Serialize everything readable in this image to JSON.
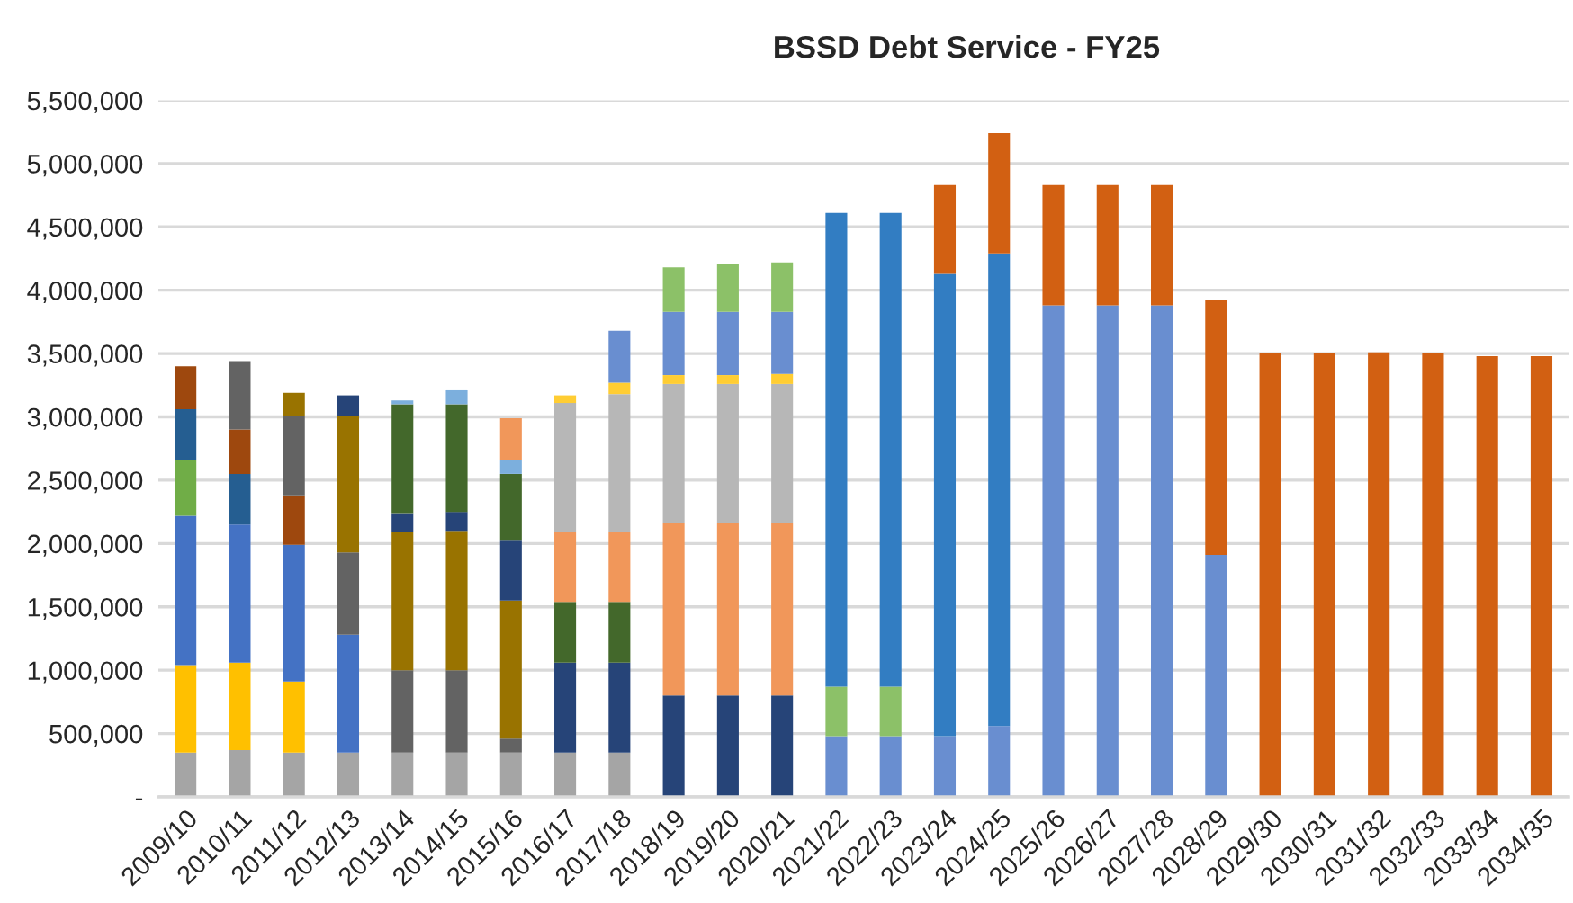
{
  "chart_data": {
    "type": "bar",
    "stacked": true,
    "title": "BSSD Debt Service - FY25",
    "categories": [
      "2009/10",
      "2010/11",
      "2011/12",
      "2012/13",
      "2013/14",
      "2014/15",
      "2015/16",
      "2016/17",
      "2017/18",
      "2018/19",
      "2019/20",
      "2020/21",
      "2021/22",
      "2022/23",
      "2023/24",
      "2024/25",
      "2025/26",
      "2026/27",
      "2027/28",
      "2028/29",
      "2029/30",
      "2030/31",
      "2031/32",
      "2032/33",
      "2033/34",
      "2034/35"
    ],
    "series": [
      {
        "color": "#a5a5a5",
        "values": [
          350000,
          370000,
          350000,
          350000,
          350000,
          350000,
          350000,
          350000,
          350000,
          null,
          null,
          null,
          null,
          null,
          null,
          null,
          null,
          null,
          null,
          null,
          null,
          null,
          null,
          null,
          null,
          null
        ]
      },
      {
        "color": "#ffc000",
        "values": [
          690000,
          690000,
          560000,
          null,
          null,
          null,
          null,
          null,
          null,
          null,
          null,
          null,
          null,
          null,
          null,
          null,
          null,
          null,
          null,
          null,
          null,
          null,
          null,
          null,
          null,
          null
        ]
      },
      {
        "color": "#4472c4",
        "values": [
          1180000,
          1090000,
          1080000,
          930000,
          null,
          null,
          null,
          null,
          null,
          null,
          null,
          null,
          null,
          null,
          null,
          null,
          null,
          null,
          null,
          null,
          null,
          null,
          null,
          null,
          null,
          null
        ]
      },
      {
        "color": "#70ad47",
        "values": [
          440000,
          null,
          null,
          null,
          null,
          null,
          null,
          null,
          null,
          null,
          null,
          null,
          null,
          null,
          null,
          null,
          null,
          null,
          null,
          null,
          null,
          null,
          null,
          null,
          null,
          null
        ]
      },
      {
        "color": "#255e91",
        "values": [
          400000,
          400000,
          null,
          null,
          null,
          null,
          null,
          null,
          null,
          null,
          null,
          null,
          null,
          null,
          null,
          null,
          null,
          null,
          null,
          null,
          null,
          null,
          null,
          null,
          null,
          null
        ]
      },
      {
        "color": "#9e480e",
        "values": [
          340000,
          350000,
          390000,
          null,
          null,
          null,
          null,
          null,
          null,
          null,
          null,
          null,
          null,
          null,
          null,
          null,
          null,
          null,
          null,
          null,
          null,
          null,
          null,
          null,
          null,
          null
        ]
      },
      {
        "color": "#636363",
        "values": [
          null,
          540000,
          630000,
          650000,
          650000,
          650000,
          110000,
          null,
          null,
          null,
          null,
          null,
          null,
          null,
          null,
          null,
          null,
          null,
          null,
          null,
          null,
          null,
          null,
          null,
          null,
          null
        ]
      },
      {
        "color": "#997300",
        "values": [
          null,
          null,
          180000,
          1080000,
          1090000,
          1100000,
          1090000,
          null,
          null,
          null,
          null,
          null,
          null,
          null,
          null,
          null,
          null,
          null,
          null,
          null,
          null,
          null,
          null,
          null,
          null,
          null
        ]
      },
      {
        "color": "#264478",
        "values": [
          null,
          null,
          null,
          160000,
          150000,
          150000,
          480000,
          710000,
          710000,
          800000,
          800000,
          800000,
          null,
          null,
          null,
          null,
          null,
          null,
          null,
          null,
          null,
          null,
          null,
          null,
          null,
          null
        ]
      },
      {
        "color": "#43682b",
        "values": [
          null,
          null,
          null,
          null,
          860000,
          850000,
          520000,
          480000,
          480000,
          null,
          null,
          null,
          null,
          null,
          null,
          null,
          null,
          null,
          null,
          null,
          null,
          null,
          null,
          null,
          null,
          null
        ]
      },
      {
        "color": "#7cafdd",
        "values": [
          null,
          null,
          null,
          null,
          30000,
          110000,
          110000,
          null,
          null,
          null,
          null,
          null,
          null,
          null,
          null,
          null,
          null,
          null,
          null,
          null,
          null,
          null,
          null,
          null,
          null,
          null
        ]
      },
      {
        "color": "#f1975a",
        "values": [
          null,
          null,
          null,
          null,
          null,
          null,
          330000,
          550000,
          550000,
          1360000,
          1360000,
          1360000,
          null,
          null,
          null,
          null,
          null,
          null,
          null,
          null,
          null,
          null,
          null,
          null,
          null,
          null
        ]
      },
      {
        "color": "#b7b7b7",
        "values": [
          null,
          null,
          null,
          null,
          null,
          null,
          null,
          1020000,
          1090000,
          1100000,
          1100000,
          1100000,
          null,
          null,
          null,
          null,
          null,
          null,
          null,
          null,
          null,
          null,
          null,
          null,
          null,
          null
        ]
      },
      {
        "color": "#ffcd33",
        "values": [
          null,
          null,
          null,
          null,
          null,
          null,
          null,
          60000,
          90000,
          70000,
          70000,
          80000,
          null,
          null,
          null,
          null,
          null,
          null,
          null,
          null,
          null,
          null,
          null,
          null,
          null,
          null
        ]
      },
      {
        "color": "#698ed0",
        "values": [
          null,
          null,
          null,
          null,
          null,
          null,
          null,
          null,
          410000,
          500000,
          500000,
          490000,
          480000,
          480000,
          480000,
          560000,
          3880000,
          3880000,
          3880000,
          1910000,
          null,
          null,
          null,
          null,
          null,
          null
        ]
      },
      {
        "color": "#8cc168",
        "values": [
          null,
          null,
          null,
          null,
          null,
          null,
          null,
          null,
          null,
          350000,
          380000,
          390000,
          390000,
          390000,
          null,
          null,
          null,
          null,
          null,
          null,
          null,
          null,
          null,
          null,
          null,
          null
        ]
      },
      {
        "color": "#327dc2",
        "values": [
          null,
          null,
          null,
          null,
          null,
          null,
          null,
          null,
          null,
          null,
          null,
          null,
          3740000,
          3740000,
          3650000,
          3730000,
          null,
          null,
          null,
          null,
          null,
          null,
          null,
          null,
          null,
          null
        ]
      },
      {
        "color": "#d26012",
        "values": [
          null,
          null,
          null,
          null,
          null,
          null,
          null,
          null,
          null,
          null,
          null,
          null,
          null,
          null,
          700000,
          950000,
          950000,
          950000,
          950000,
          2010000,
          3500000,
          3500000,
          3510000,
          3500000,
          3480000,
          3480000
        ]
      }
    ],
    "ylim": [
      0,
      5500000
    ],
    "yticks": [
      {
        "value": 0,
        "label": "-"
      },
      {
        "value": 500000,
        "label": "500,000"
      },
      {
        "value": 1000000,
        "label": "1,000,000"
      },
      {
        "value": 1500000,
        "label": "1,500,000"
      },
      {
        "value": 2000000,
        "label": "2,000,000"
      },
      {
        "value": 2500000,
        "label": "2,500,000"
      },
      {
        "value": 3000000,
        "label": "3,000,000"
      },
      {
        "value": 3500000,
        "label": "3,500,000"
      },
      {
        "value": 4000000,
        "label": "4,000,000"
      },
      {
        "value": 4500000,
        "label": "4,500,000"
      },
      {
        "value": 5000000,
        "label": "5,000,000"
      },
      {
        "value": 5500000,
        "label": "5,500,000"
      }
    ],
    "grid": "y"
  }
}
